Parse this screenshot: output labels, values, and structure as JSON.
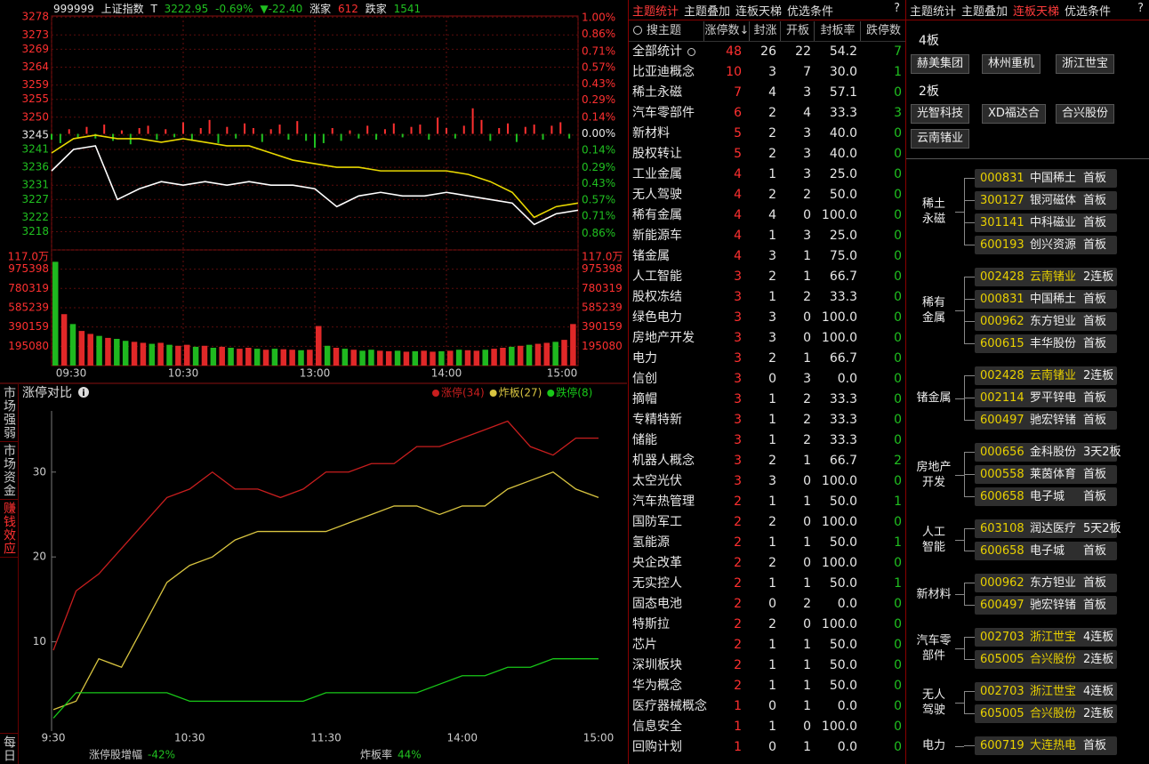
{
  "header": {
    "code": "999999",
    "name": "上证指数",
    "marker": "T",
    "price": "3222.95",
    "change_pct": "-0.69%",
    "change": "▼-22.40",
    "up_label": "涨家",
    "up": "612",
    "down_label": "跌家",
    "down": "1541"
  },
  "index_chart": {
    "type": "line",
    "xlim": [
      0,
      240
    ],
    "xticks": [
      {
        "value": 0,
        "label": "09:30"
      },
      {
        "value": 60,
        "label": "10:30"
      },
      {
        "value": 120,
        "label": "13:00"
      },
      {
        "value": 180,
        "label": "14:00"
      },
      {
        "value": 240,
        "label": "15:00"
      }
    ],
    "ylim": [
      3212.9,
      3277.8
    ],
    "yticks": [
      3278,
      3273,
      3269,
      3264,
      3259,
      3255,
      3250,
      3245,
      3241,
      3236,
      3231,
      3227,
      3222,
      3218
    ],
    "y2lim": [
      -1,
      1
    ],
    "y2ticks": [
      {
        "value": 1,
        "label": "1.00%"
      },
      {
        "value": 0.86,
        "label": "0.86%"
      },
      {
        "value": 0.71,
        "label": "0.71%"
      },
      {
        "value": 0.57,
        "label": "0.57%"
      },
      {
        "value": 0.43,
        "label": "0.43%"
      },
      {
        "value": 0.29,
        "label": "0.29%"
      },
      {
        "value": 0.14,
        "label": "0.14%"
      },
      {
        "value": 0,
        "label": "0.00%"
      },
      {
        "value": -0.14,
        "label": "0.14%"
      },
      {
        "value": -0.29,
        "label": "0.29%"
      },
      {
        "value": -0.43,
        "label": "0.43%"
      },
      {
        "value": -0.57,
        "label": "0.57%"
      },
      {
        "value": -0.71,
        "label": "0.71%"
      },
      {
        "value": -0.86,
        "label": "0.86%"
      }
    ],
    "series": [
      {
        "type": "bar",
        "axis": "y2",
        "x": [
          0,
          4,
          8,
          12,
          16,
          20,
          24,
          28,
          32,
          36,
          40,
          44,
          48,
          52,
          56,
          60,
          64,
          68,
          72,
          76,
          80,
          84,
          88,
          92,
          96,
          100,
          104,
          108,
          112,
          116,
          120,
          124,
          128,
          132,
          136,
          140,
          144,
          148,
          152,
          156,
          160,
          164,
          168,
          172,
          176,
          180,
          184,
          188,
          192,
          196,
          200,
          204,
          208,
          212,
          216,
          220,
          224,
          228,
          232,
          236
        ],
        "values": [
          -0.05,
          -0.08,
          0.04,
          -0.03,
          0.06,
          -0.04,
          0.08,
          -0.06,
          0.03,
          -0.09,
          0.05,
          0.07,
          -0.05,
          0.04,
          -0.03,
          0.1,
          -0.06,
          0.05,
          0.12,
          -0.08,
          0.06,
          -0.04,
          0.09,
          0.05,
          -0.07,
          0.04,
          0.08,
          -0.05,
          0.11,
          -0.06,
          -0.12,
          -0.08,
          0.05,
          -0.06,
          0.03,
          -0.04,
          0.07,
          -0.05,
          0.04,
          0.09,
          -0.03,
          0.06,
          0.08,
          -0.05,
          0.14,
          0.05,
          -0.04,
          0.07,
          0.22,
          0.12,
          -0.06,
          0.05,
          0.09,
          -0.07,
          0.06,
          0.08,
          -0.05,
          0.07,
          0.1,
          -0.04
        ]
      },
      {
        "type": "line",
        "color": "#e8d800",
        "x": [
          0,
          10,
          20,
          30,
          40,
          50,
          60,
          70,
          80,
          90,
          100,
          110,
          120,
          130,
          140,
          150,
          160,
          170,
          180,
          190,
          200,
          210,
          220,
          230,
          240
        ],
        "values": [
          3240,
          3244,
          3245,
          3244,
          3244,
          3243,
          3244,
          3243,
          3242,
          3242,
          3240,
          3238,
          3237,
          3236,
          3236,
          3235,
          3235,
          3235,
          3235,
          3234,
          3232,
          3229,
          3222,
          3225,
          3226
        ]
      },
      {
        "type": "line",
        "color": "#ffffff",
        "x": [
          0,
          10,
          20,
          30,
          40,
          50,
          60,
          70,
          80,
          90,
          100,
          110,
          120,
          130,
          140,
          150,
          160,
          170,
          180,
          190,
          200,
          210,
          220,
          230,
          240
        ],
        "values": [
          3235,
          3241,
          3242,
          3227,
          3230,
          3232,
          3231,
          3232,
          3231,
          3232,
          3231,
          3231,
          3230,
          3225,
          3228,
          3229,
          3228,
          3228,
          3229,
          3228,
          3227,
          3226,
          3220,
          3223,
          3224
        ]
      }
    ]
  },
  "volume_chart": {
    "type": "bar",
    "xlim": [
      0,
      240
    ],
    "ylim": [
      0,
      1170000
    ],
    "yticks": [
      {
        "value": 1170000,
        "label": "117.0万"
      },
      975398,
      780319,
      585239,
      390159,
      195080
    ],
    "x": [
      0,
      4,
      8,
      12,
      16,
      20,
      24,
      28,
      32,
      36,
      40,
      44,
      48,
      52,
      56,
      60,
      64,
      68,
      72,
      76,
      80,
      84,
      88,
      92,
      96,
      100,
      104,
      108,
      112,
      116,
      120,
      124,
      128,
      132,
      136,
      140,
      144,
      148,
      152,
      156,
      160,
      164,
      168,
      172,
      176,
      180,
      184,
      188,
      192,
      196,
      200,
      204,
      208,
      212,
      216,
      220,
      224,
      228,
      232,
      236
    ],
    "values": [
      1050000,
      520000,
      420000,
      350000,
      320000,
      300000,
      280000,
      270000,
      250000,
      240000,
      230000,
      220000,
      230000,
      210000,
      200000,
      210000,
      190000,
      200000,
      180000,
      190000,
      180000,
      170000,
      180000,
      170000,
      160000,
      170000,
      165000,
      160000,
      155000,
      160000,
      400000,
      200000,
      180000,
      170000,
      160000,
      150000,
      160000,
      150000,
      145000,
      150000,
      140000,
      145000,
      150000,
      140000,
      145000,
      150000,
      160000,
      155000,
      150000,
      160000,
      170000,
      180000,
      190000,
      200000,
      210000,
      220000,
      230000,
      240000,
      260000,
      420000
    ],
    "up": [
      false,
      true,
      false,
      true,
      true,
      false,
      true,
      false,
      false,
      true,
      true,
      false,
      true,
      false,
      true,
      true,
      false,
      true,
      false,
      true,
      false,
      true,
      true,
      false,
      true,
      false,
      true,
      true,
      false,
      true,
      true,
      false,
      true,
      false,
      true,
      false,
      false,
      true,
      true,
      false,
      true,
      false,
      true,
      true,
      false,
      true,
      false,
      true,
      true,
      false,
      true,
      true,
      false,
      true,
      false,
      true,
      true,
      false,
      true,
      true
    ],
    "up_color": "#e02828",
    "down_color": "#1fb81f"
  },
  "side_tabs": [
    "市场强弱",
    "市场资金",
    "赚钱效应",
    "每日"
  ],
  "limit_chart": {
    "type": "line",
    "title": "涨停对比",
    "xlim": [
      0,
      240
    ],
    "xticks": [
      {
        "value": 0,
        "label": "9:30"
      },
      {
        "value": 60,
        "label": "10:30"
      },
      {
        "value": 120,
        "label": "11:30"
      },
      {
        "value": 180,
        "label": "14:00"
      },
      {
        "value": 240,
        "label": "15:00"
      }
    ],
    "ylim": [
      0,
      37
    ],
    "yticks": [
      10,
      20,
      30
    ],
    "x": [
      0,
      10,
      20,
      30,
      40,
      50,
      60,
      70,
      80,
      90,
      100,
      110,
      120,
      130,
      140,
      150,
      160,
      170,
      180,
      190,
      200,
      210,
      220,
      230,
      240
    ],
    "series": [
      {
        "name": "涨停(34)",
        "color": "#c81e1e",
        "values": [
          9,
          16,
          18,
          21,
          24,
          27,
          28,
          30,
          28,
          28,
          27,
          28,
          30,
          30,
          31,
          31,
          33,
          33,
          34,
          35,
          36,
          33,
          32,
          34,
          34
        ]
      },
      {
        "name": "炸板(27)",
        "color": "#d8c440",
        "values": [
          2,
          3,
          8,
          7,
          12,
          17,
          19,
          20,
          22,
          23,
          23,
          23,
          23,
          24,
          25,
          26,
          26,
          25,
          26,
          26,
          28,
          29,
          30,
          28,
          27
        ]
      },
      {
        "name": "跌停(8)",
        "color": "#18c818",
        "values": [
          1,
          4,
          4,
          4,
          4,
          4,
          3,
          3,
          3,
          3,
          3,
          3,
          4,
          4,
          4,
          4,
          4,
          5,
          6,
          6,
          7,
          7,
          8,
          8,
          8
        ]
      }
    ],
    "stats": [
      {
        "label": "涨停股增幅",
        "value": "-42%"
      },
      {
        "label": "炸板率",
        "value": "44%"
      }
    ]
  },
  "theme_table": {
    "tabs": [
      "主题统计",
      "主题叠加",
      "连板天梯",
      "优选条件",
      "?"
    ],
    "headers": [
      "搜主题",
      "涨停数↓",
      "封涨",
      "开板",
      "封板率",
      "跌停数"
    ],
    "rows": [
      [
        "全部统计",
        48,
        26,
        22,
        "54.2",
        7
      ],
      [
        "比亚迪概念",
        10,
        3,
        7,
        "30.0",
        1
      ],
      [
        "稀土永磁",
        7,
        4,
        3,
        "57.1",
        0
      ],
      [
        "汽车零部件",
        6,
        2,
        4,
        "33.3",
        3
      ],
      [
        "新材料",
        5,
        2,
        3,
        "40.0",
        0
      ],
      [
        "股权转让",
        5,
        2,
        3,
        "40.0",
        0
      ],
      [
        "工业金属",
        4,
        1,
        3,
        "25.0",
        0
      ],
      [
        "无人驾驶",
        4,
        2,
        2,
        "50.0",
        0
      ],
      [
        "稀有金属",
        4,
        4,
        0,
        "100.0",
        0
      ],
      [
        "新能源车",
        4,
        1,
        3,
        "25.0",
        0
      ],
      [
        "锗金属",
        4,
        3,
        1,
        "75.0",
        0
      ],
      [
        "人工智能",
        3,
        2,
        1,
        "66.7",
        0
      ],
      [
        "股权冻结",
        3,
        1,
        2,
        "33.3",
        0
      ],
      [
        "绿色电力",
        3,
        3,
        0,
        "100.0",
        0
      ],
      [
        "房地产开发",
        3,
        3,
        0,
        "100.0",
        0
      ],
      [
        "电力",
        3,
        2,
        1,
        "66.7",
        0
      ],
      [
        "信创",
        3,
        0,
        3,
        "0.0",
        0
      ],
      [
        "摘帽",
        3,
        1,
        2,
        "33.3",
        0
      ],
      [
        "专精特新",
        3,
        1,
        2,
        "33.3",
        0
      ],
      [
        "储能",
        3,
        1,
        2,
        "33.3",
        0
      ],
      [
        "机器人概念",
        3,
        2,
        1,
        "66.7",
        2
      ],
      [
        "太空光伏",
        3,
        3,
        0,
        "100.0",
        0
      ],
      [
        "汽车热管理",
        2,
        1,
        1,
        "50.0",
        1
      ],
      [
        "国防军工",
        2,
        2,
        0,
        "100.0",
        0
      ],
      [
        "氢能源",
        2,
        1,
        1,
        "50.0",
        1
      ],
      [
        "央企改革",
        2,
        2,
        0,
        "100.0",
        0
      ],
      [
        "无实控人",
        2,
        1,
        1,
        "50.0",
        1
      ],
      [
        "固态电池",
        2,
        0,
        2,
        "0.0",
        0
      ],
      [
        "特斯拉",
        2,
        2,
        0,
        "100.0",
        0
      ],
      [
        "芯片",
        2,
        1,
        1,
        "50.0",
        0
      ],
      [
        "深圳板块",
        2,
        1,
        1,
        "50.0",
        0
      ],
      [
        "华为概念",
        2,
        1,
        1,
        "50.0",
        0
      ],
      [
        "医疗器械概念",
        1,
        0,
        1,
        "0.0",
        0
      ],
      [
        "信息安全",
        1,
        1,
        0,
        "100.0",
        0
      ],
      [
        "回购计划",
        1,
        0,
        1,
        "0.0",
        0
      ]
    ]
  },
  "ladder": {
    "tabs": [
      "主题统计",
      "主题叠加",
      "连板天梯",
      "优选条件",
      "?"
    ],
    "tiers": [
      {
        "label": "4板",
        "stocks": [
          "赫美集团",
          "林州重机",
          "浙江世宝"
        ]
      },
      {
        "label": "2板",
        "stocks": [
          "光智科技",
          "XD福达合",
          "合兴股份",
          "云南锗业"
        ]
      }
    ],
    "groups": [
      {
        "label": [
          "稀土",
          "永磁"
        ],
        "items": [
          {
            "code": "000831",
            "name": "中国稀土",
            "tag": "首板"
          },
          {
            "code": "300127",
            "name": "银河磁体",
            "tag": "首板"
          },
          {
            "code": "301141",
            "name": "中科磁业",
            "tag": "首板"
          },
          {
            "code": "600193",
            "name": "创兴资源",
            "tag": "首板"
          }
        ]
      },
      {
        "label": [
          "稀有",
          "金属"
        ],
        "items": [
          {
            "code": "002428",
            "name": "云南锗业",
            "tag": "2连板",
            "highlight": true
          },
          {
            "code": "000831",
            "name": "中国稀土",
            "tag": "首板"
          },
          {
            "code": "000962",
            "name": "东方钽业",
            "tag": "首板"
          },
          {
            "code": "600615",
            "name": "丰华股份",
            "tag": "首板"
          }
        ]
      },
      {
        "label": [
          "锗金属"
        ],
        "items": [
          {
            "code": "002428",
            "name": "云南锗业",
            "tag": "2连板",
            "highlight": true
          },
          {
            "code": "002114",
            "name": "罗平锌电",
            "tag": "首板"
          },
          {
            "code": "600497",
            "name": "驰宏锌锗",
            "tag": "首板"
          }
        ]
      },
      {
        "label": [
          "房地产",
          "开发"
        ],
        "items": [
          {
            "code": "000656",
            "name": "金科股份",
            "tag": "3天2板"
          },
          {
            "code": "000558",
            "name": "莱茵体育",
            "tag": "首板"
          },
          {
            "code": "600658",
            "name": "电子城",
            "tag": "首板"
          }
        ]
      },
      {
        "label": [
          "人工",
          "智能"
        ],
        "items": [
          {
            "code": "603108",
            "name": "润达医疗",
            "tag": "5天2板"
          },
          {
            "code": "600658",
            "name": "电子城",
            "tag": "首板"
          }
        ]
      },
      {
        "label": [
          "新材料"
        ],
        "items": [
          {
            "code": "000962",
            "name": "东方钽业",
            "tag": "首板"
          },
          {
            "code": "600497",
            "name": "驰宏锌锗",
            "tag": "首板"
          }
        ]
      },
      {
        "label": [
          "汽车零",
          "部件"
        ],
        "items": [
          {
            "code": "002703",
            "name": "浙江世宝",
            "tag": "4连板",
            "highlight": true
          },
          {
            "code": "605005",
            "name": "合兴股份",
            "tag": "2连板",
            "highlight": true
          }
        ]
      },
      {
        "label": [
          "无人",
          "驾驶"
        ],
        "items": [
          {
            "code": "002703",
            "name": "浙江世宝",
            "tag": "4连板",
            "highlight": true
          },
          {
            "code": "605005",
            "name": "合兴股份",
            "tag": "2连板",
            "highlight": true
          }
        ]
      },
      {
        "label": [
          "电力"
        ],
        "items": [
          {
            "code": "600719",
            "name": "大连热电",
            "tag": "首板",
            "highlight": true
          }
        ]
      }
    ]
  }
}
